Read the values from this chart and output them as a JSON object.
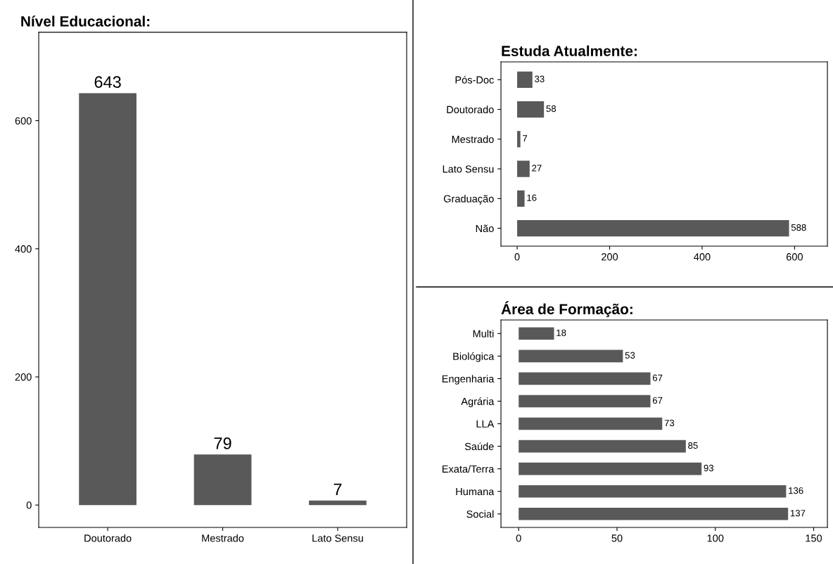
{
  "chart_data": [
    {
      "type": "bar",
      "title": "Nível Educacional:",
      "categories": [
        "Doutorado",
        "Mestrado",
        "Lato Sensu"
      ],
      "values": [
        643,
        79,
        7
      ],
      "color": "#595959",
      "ylim": [
        -35,
        738
      ],
      "yticks": [
        0,
        200,
        400,
        600
      ],
      "data_labels": true
    },
    {
      "type": "bar",
      "orientation": "horizontal",
      "title": "Estuda Atualmente:",
      "categories": [
        "Pós-Doc",
        "Doutorado",
        "Mestrado",
        "Lato Sensu",
        "Graduação",
        "Não"
      ],
      "values": [
        33,
        58,
        7,
        27,
        16,
        588
      ],
      "color": "#595959",
      "xlim": [
        -35,
        671
      ],
      "xticks": [
        0,
        200,
        400,
        600
      ],
      "data_labels": true
    },
    {
      "type": "bar",
      "orientation": "horizontal",
      "title": "Área de Formação:",
      "categories": [
        "Multi",
        "Biológica",
        "Engenharia",
        "Agrária",
        "LLA",
        "Saúde",
        "Exata/Terra",
        "Humana",
        "Social"
      ],
      "values": [
        18,
        53,
        67,
        67,
        73,
        85,
        93,
        136,
        137
      ],
      "color": "#595959",
      "xlim": [
        -9,
        157
      ],
      "xticks": [
        0,
        50,
        100,
        150
      ],
      "data_labels": true
    }
  ]
}
